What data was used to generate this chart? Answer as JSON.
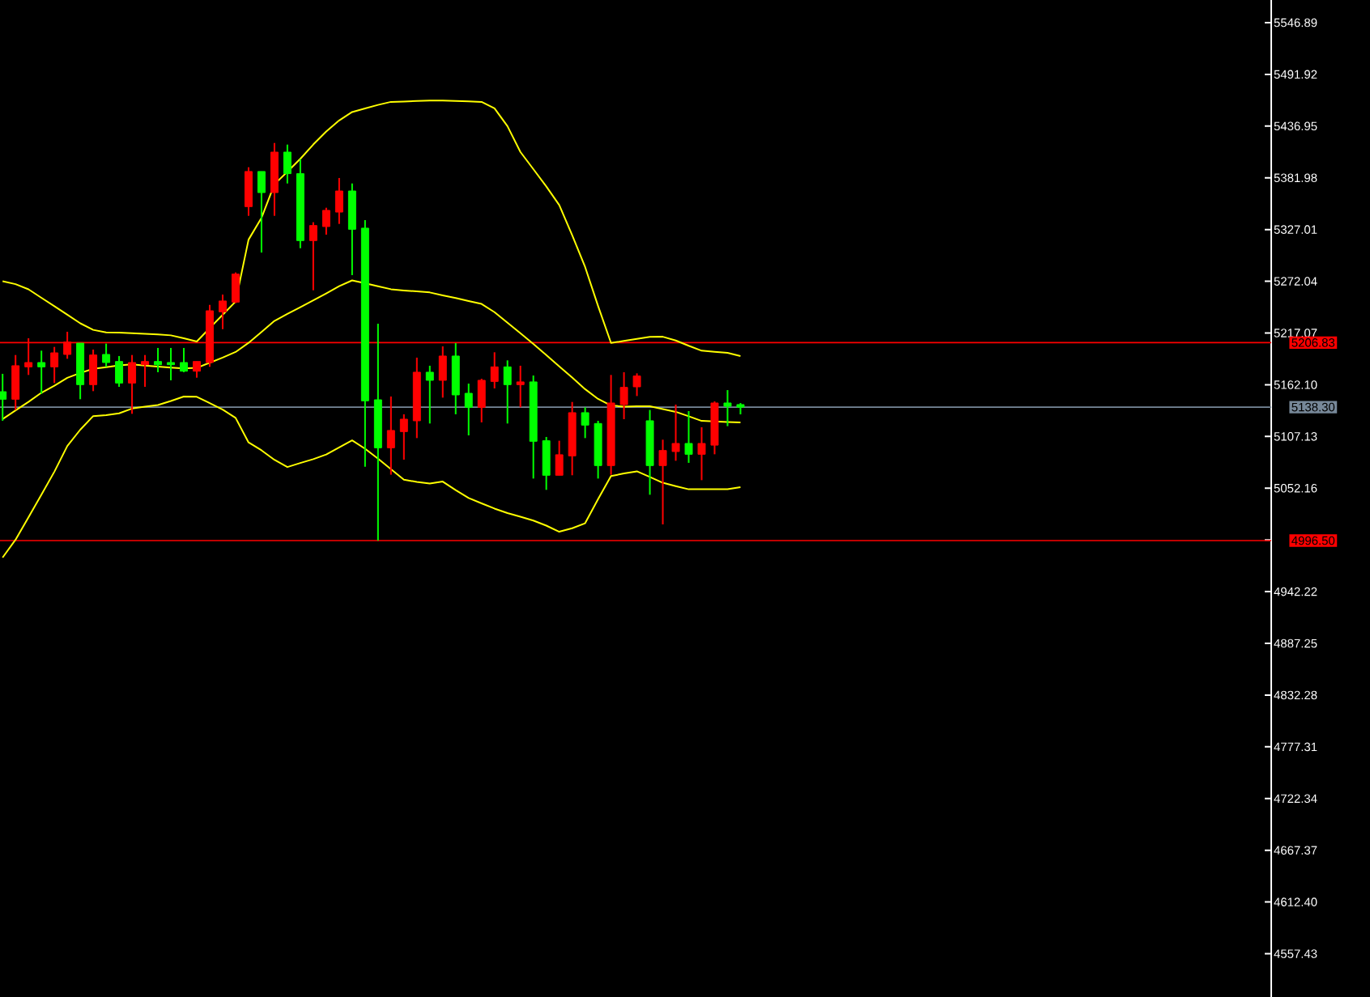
{
  "chart_data": {
    "type": "candlestick",
    "categories": [
      null,
      null,
      null,
      null,
      null,
      null,
      null,
      null,
      null,
      null,
      null,
      null,
      null,
      null,
      null,
      null,
      null,
      null,
      null,
      null,
      null,
      null,
      null,
      null,
      null,
      null,
      null,
      null,
      null,
      null,
      null,
      null,
      null,
      null,
      null,
      null,
      null,
      null,
      null,
      null,
      null,
      null,
      null,
      null,
      null,
      null,
      null,
      null,
      null,
      null,
      null,
      null,
      null,
      null,
      null,
      null,
      null,
      null
    ],
    "ohlc": [
      [
        5154.7,
        5173.7,
        5123.8,
        5146.7
      ],
      [
        5146.7,
        5193.7,
        5135.3,
        5182.3
      ],
      [
        5181.1,
        5211.5,
        5172.5,
        5185.7
      ],
      [
        5185.7,
        5198.3,
        5152.5,
        5181.1
      ],
      [
        5181.1,
        5202.3,
        5163.9,
        5196.0
      ],
      [
        5194.3,
        5218.4,
        5189.7,
        5207.5
      ],
      [
        5206.3,
        5206.3,
        5146.7,
        5162.2
      ],
      [
        5162.2,
        5199.5,
        5155.3,
        5193.7
      ],
      [
        5194.3,
        5205.8,
        5181.1,
        5185.7
      ],
      [
        5186.8,
        5192.6,
        5159.9,
        5163.9
      ],
      [
        5163.9,
        5193.7,
        5131.2,
        5185.7
      ],
      [
        5183.4,
        5193.7,
        5159.9,
        5186.8
      ],
      [
        5186.8,
        5201.2,
        5175.4,
        5183.4
      ],
      [
        5185.7,
        5201.2,
        5166.8,
        5183.4
      ],
      [
        5185.7,
        5201.2,
        5175.4,
        5176.5
      ],
      [
        5176.5,
        5186.8,
        5169.6,
        5186.8
      ],
      [
        5185.7,
        5247.0,
        5181.1,
        5240.7
      ],
      [
        5239.6,
        5257.9,
        5221.2,
        5251.1
      ],
      [
        5249.9,
        5281.4,
        5248.8,
        5279.7
      ],
      [
        5351.4,
        5393.2,
        5341.6,
        5388.7
      ],
      [
        5388.7,
        5388.7,
        5302.6,
        5366.3
      ],
      [
        5366.3,
        5419.0,
        5341.6,
        5409.3
      ],
      [
        5409.3,
        5417.3,
        5376.0,
        5386.4
      ],
      [
        5386.4,
        5401.8,
        5307.2,
        5315.3
      ],
      [
        5315.3,
        5334.8,
        5262.5,
        5331.3
      ],
      [
        5330.2,
        5350.2,
        5321.6,
        5347.4
      ],
      [
        5345.6,
        5381.8,
        5333.0,
        5368.0
      ],
      [
        5368.0,
        5376.0,
        5278.6,
        5327.3
      ],
      [
        5328.5,
        5337.1,
        5075.0,
        5145.0
      ],
      [
        5146.1,
        5227.0,
        4996.5,
        5095.1
      ],
      [
        5095.1,
        5149.6,
        5066.5,
        5113.5
      ],
      [
        5112.3,
        5130.7,
        5082.5,
        5125.5
      ],
      [
        5123.8,
        5190.9,
        5105.4,
        5175.4
      ],
      [
        5175.4,
        5182.3,
        5120.9,
        5166.8
      ],
      [
        5166.8,
        5202.9,
        5148.4,
        5192.6
      ],
      [
        5192.6,
        5206.3,
        5130.7,
        5151.3
      ],
      [
        5153.0,
        5163.3,
        5108.3,
        5138.1
      ],
      [
        5138.1,
        5168.5,
        5122.1,
        5166.8
      ],
      [
        5165.6,
        5196.6,
        5158.2,
        5181.1
      ],
      [
        5181.1,
        5188.0,
        5120.9,
        5162.2
      ],
      [
        5162.2,
        5182.3,
        5138.1,
        5165.1
      ],
      [
        5165.1,
        5171.9,
        5062.4,
        5102.0
      ],
      [
        5102.6,
        5106.6,
        5050.4,
        5065.9
      ],
      [
        5065.9,
        5102.6,
        5065.9,
        5087.7
      ],
      [
        5086.5,
        5143.8,
        5065.9,
        5132.4
      ],
      [
        5132.4,
        5138.1,
        5105.4,
        5119.2
      ],
      [
        5120.9,
        5123.8,
        5062.4,
        5076.2
      ],
      [
        5076.2,
        5172.5,
        5066.4,
        5142.7
      ],
      [
        5141.0,
        5175.4,
        5125.5,
        5159.3
      ],
      [
        5159.9,
        5174.2,
        5150.1,
        5171.4
      ],
      [
        5123.8,
        5135.3,
        5045.2,
        5076.2
      ],
      [
        5076.2,
        5103.7,
        5013.7,
        5092.2
      ],
      [
        5091.1,
        5141.0,
        5081.3,
        5099.7
      ],
      [
        5099.7,
        5134.1,
        5079.1,
        5088.2
      ],
      [
        5088.2,
        5116.9,
        5060.7,
        5099.7
      ],
      [
        5097.9,
        5144.4,
        5088.2,
        5142.7
      ],
      [
        5142.7,
        5156.4,
        5118.1,
        5139.2
      ],
      [
        5141.0,
        5142.7,
        5130.6,
        5138.3
      ]
    ],
    "colors": [
      "#00ff00",
      "#ff0000",
      "#ff0000",
      "#00ff00",
      "#ff0000",
      "#ff0000",
      "#00ff00",
      "#ff0000",
      "#00ff00",
      "#00ff00",
      "#ff0000",
      "#ff0000",
      "#00ff00",
      "#00ff00",
      "#00ff00",
      "#ff0000",
      "#ff0000",
      "#ff0000",
      "#ff0000",
      "#ff0000",
      "#00ff00",
      "#ff0000",
      "#00ff00",
      "#00ff00",
      "#ff0000",
      "#ff0000",
      "#ff0000",
      "#00ff00",
      "#00ff00",
      "#00ff00",
      "#ff0000",
      "#ff0000",
      "#ff0000",
      "#00ff00",
      "#ff0000",
      "#00ff00",
      "#00ff00",
      "#ff0000",
      "#ff0000",
      "#00ff00",
      "#ff0000",
      "#00ff00",
      "#00ff00",
      "#ff0000",
      "#ff0000",
      "#00ff00",
      "#00ff00",
      "#ff0000",
      "#ff0000",
      "#ff0000",
      "#00ff00",
      "#ff0000",
      "#ff0000",
      "#00ff00",
      "#ff0000",
      "#ff0000",
      "#00ff00",
      "#00ff00"
    ],
    "series": [
      {
        "type": "line",
        "color": "#ffff00",
        "values": [
          5272.1,
          5269.0,
          5263.5,
          5254.5,
          5245.6,
          5236.5,
          5227.4,
          5220.4,
          5217.7,
          5217.5,
          5216.9,
          5216.3,
          5215.6,
          5214.6,
          5211.4,
          5208.1,
          5222.3,
          5236.4,
          5250.5,
          5316.3,
          5339.4,
          5375.2,
          5388.4,
          5402.2,
          5417.4,
          5431.2,
          5443.0,
          5451.9,
          5455.7,
          5459.5,
          5462.7,
          5463.1,
          5463.6,
          5464.1,
          5464.1,
          5463.6,
          5463.2,
          5462.7,
          5455.8,
          5436.9,
          5409.5,
          5391.2,
          5372.9,
          5353.1,
          5321.1,
          5287.2,
          5245.8,
          5206.5,
          5208.6,
          5210.8,
          5213.0,
          5213.1,
          5209.1,
          5203.5,
          5198.3,
          5197.1,
          5196.0,
          5192.6
        ]
      },
      {
        "type": "line",
        "color": "#ffff00",
        "values": [
          5125.6,
          5134.8,
          5143.9,
          5153.6,
          5161.0,
          5169.4,
          5174.6,
          5179.0,
          5180.8,
          5182.6,
          5183.7,
          5182.5,
          5181.3,
          5180.4,
          5179.5,
          5180.0,
          5185.5,
          5191.0,
          5196.9,
          5206.6,
          5218.2,
          5229.9,
          5237.3,
          5244.5,
          5251.7,
          5259.2,
          5266.8,
          5273.0,
          5269.9,
          5266.7,
          5263.6,
          5262.3,
          5261.3,
          5260.2,
          5257.1,
          5254.3,
          5251.0,
          5248.0,
          5239.2,
          5228.1,
          5216.8,
          5205.4,
          5193.6,
          5181.7,
          5169.7,
          5157.4,
          5147.0,
          5140.0,
          5138.9,
          5139.2,
          5139.2,
          5136.2,
          5133.3,
          5128.6,
          5123.7,
          5123.1,
          5122.5,
          5122.0
        ]
      },
      {
        "type": "line",
        "color": "#ffff00",
        "values": [
          4978.4,
          4997.4,
          5021.3,
          5045.3,
          5069.7,
          5097.0,
          5114.3,
          5128.8,
          5129.8,
          5131.7,
          5136.8,
          5138.9,
          5140.5,
          5144.8,
          5149.6,
          5149.3,
          5142.6,
          5135.7,
          5126.9,
          5100.8,
          5092.4,
          5082.3,
          5074.6,
          5078.9,
          5083.0,
          5088.0,
          5095.5,
          5103.0,
          5094.1,
          5083.6,
          5072.4,
          5061.2,
          5058.8,
          5057.1,
          5059.2,
          5050.2,
          5041.7,
          5036.0,
          5030.5,
          5025.7,
          5021.8,
          5017.8,
          5012.4,
          5005.9,
          5009.6,
          5014.9,
          5040.5,
          5065.0,
          5067.8,
          5070.1,
          5064.1,
          5057.9,
          5054.3,
          5051.0,
          5051.0,
          5051.0,
          5051.0,
          5053.3
        ]
      }
    ],
    "ylim": [
      4511.45,
      5570.97
    ],
    "yticks": [
      {
        "value": 5546.89,
        "label": "5546.89"
      },
      {
        "value": 5491.92,
        "label": "5491.92"
      },
      {
        "value": 5436.95,
        "label": "5436.95"
      },
      {
        "value": 5381.98,
        "label": "5381.98"
      },
      {
        "value": 5327.01,
        "label": "5327.01"
      },
      {
        "value": 5272.04,
        "label": "5272.04"
      },
      {
        "value": 5217.07,
        "label": "5217.07"
      },
      {
        "value": 5162.1,
        "label": "5162.10"
      },
      {
        "value": 5107.13,
        "label": "5107.13"
      },
      {
        "value": 5052.16,
        "label": "5052.16"
      },
      {
        "value": 4997.19,
        "label": null
      },
      {
        "value": 4942.22,
        "label": "4942.22"
      },
      {
        "value": 4887.25,
        "label": "4887.25"
      },
      {
        "value": 4832.28,
        "label": "4832.28"
      },
      {
        "value": 4777.31,
        "label": "4777.31"
      },
      {
        "value": 4722.34,
        "label": "4722.34"
      },
      {
        "value": 4667.37,
        "label": "4667.37"
      },
      {
        "value": 4612.4,
        "label": "4612.40"
      },
      {
        "value": 4557.43,
        "label": "4557.43"
      }
    ],
    "tick_labels": "y",
    "ref_lines": [
      {
        "axis": "y",
        "value": 5206.83,
        "label": "5206.83",
        "color": "#ff0000"
      },
      {
        "axis": "y",
        "value": 5138.3,
        "label": "5138.30",
        "color": "#778899"
      },
      {
        "axis": "y",
        "value": 4996.5,
        "label": "4996.50",
        "color": "#ff0000"
      }
    ]
  }
}
